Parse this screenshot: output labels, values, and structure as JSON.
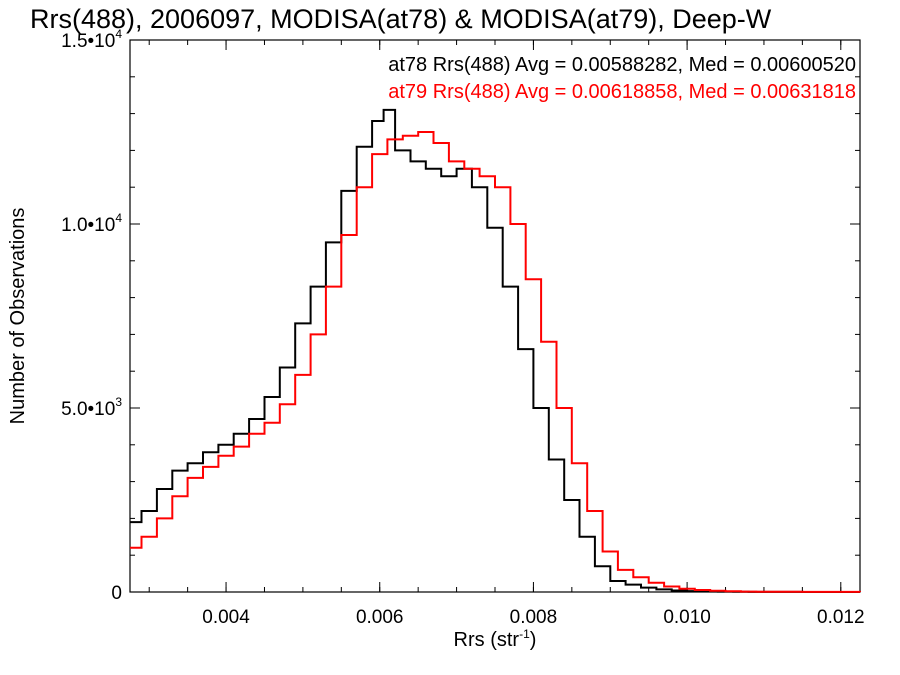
{
  "chart_data": {
    "type": "line",
    "title": "Rrs(488), 2006097, MODISA(at78) & MODISA(at79), Deep-W",
    "xlabel": "Rrs (str",
    "xlabel_exp": "-1",
    "xlabel_close": ")",
    "ylabel": "Number of Observations",
    "xlim": [
      0.00275,
      0.01225
    ],
    "ylim": [
      0,
      15000
    ],
    "grid": false,
    "x_ticks": [
      {
        "label": "0.004"
      },
      {
        "label": "0.006"
      },
      {
        "label": "0.008"
      },
      {
        "label": "0.010"
      },
      {
        "label": "0.012"
      }
    ],
    "y_ticks": [
      {
        "mant": "0",
        "exp": ""
      },
      {
        "mant": "5.0•10",
        "exp": "3"
      },
      {
        "mant": "1.0•10",
        "exp": "4"
      },
      {
        "mant": "1.5•10",
        "exp": "4"
      }
    ],
    "legend_position": "top-right",
    "series": [
      {
        "name": "at78",
        "color": "#000000",
        "legend": "at78 Rrs(488) Avg = 0.00588282, Med = 0.00600520",
        "x": [
          0.00275,
          0.0029,
          0.0031,
          0.0033,
          0.0035,
          0.0037,
          0.0039,
          0.0041,
          0.0043,
          0.0045,
          0.0047,
          0.0049,
          0.0051,
          0.0053,
          0.0055,
          0.0057,
          0.0059,
          0.00605,
          0.0062,
          0.0064,
          0.0066,
          0.0068,
          0.007,
          0.0072,
          0.0074,
          0.0076,
          0.0078,
          0.008,
          0.0082,
          0.0084,
          0.0086,
          0.0088,
          0.009,
          0.0092,
          0.0094,
          0.0096,
          0.0098,
          0.01,
          0.0102,
          0.0104,
          0.0106,
          0.0108,
          0.011,
          0.0115,
          0.01225
        ],
        "y": [
          1900,
          2200,
          2800,
          3300,
          3500,
          3800,
          4000,
          4300,
          4700,
          5300,
          6100,
          7300,
          8300,
          9500,
          10900,
          12100,
          12800,
          13100,
          12000,
          11700,
          11500,
          11300,
          11500,
          11000,
          9900,
          8300,
          6600,
          5000,
          3600,
          2500,
          1500,
          700,
          300,
          200,
          120,
          70,
          40,
          25,
          15,
          10,
          6,
          4,
          2,
          1,
          0
        ]
      },
      {
        "name": "at79",
        "color": "#ff0000",
        "legend": "at79 Rrs(488) Avg = 0.00618858, Med = 0.00631818",
        "x": [
          0.00275,
          0.0029,
          0.0031,
          0.0033,
          0.0035,
          0.0037,
          0.0039,
          0.0041,
          0.0043,
          0.0045,
          0.0047,
          0.0049,
          0.0051,
          0.0053,
          0.0055,
          0.0057,
          0.0059,
          0.0061,
          0.0063,
          0.0065,
          0.0067,
          0.0069,
          0.0071,
          0.0073,
          0.0075,
          0.0077,
          0.0079,
          0.0081,
          0.0083,
          0.0085,
          0.0087,
          0.0089,
          0.0091,
          0.0093,
          0.0095,
          0.0097,
          0.0099,
          0.0101,
          0.0103,
          0.0105,
          0.0107,
          0.0109,
          0.0111,
          0.0115,
          0.01225
        ],
        "y": [
          1200,
          1500,
          2000,
          2600,
          3100,
          3400,
          3700,
          3950,
          4300,
          4600,
          5100,
          5900,
          7000,
          8300,
          9700,
          11000,
          11900,
          12300,
          12400,
          12500,
          12200,
          11700,
          11500,
          11300,
          11000,
          10000,
          8500,
          6800,
          5000,
          3500,
          2200,
          1100,
          600,
          400,
          250,
          150,
          90,
          55,
          35,
          20,
          12,
          8,
          5,
          2,
          0
        ]
      }
    ]
  }
}
